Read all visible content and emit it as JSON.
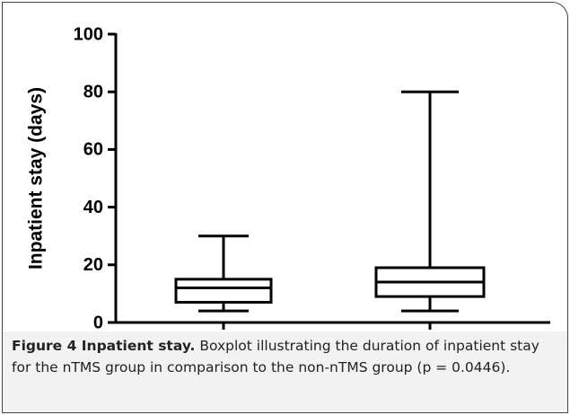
{
  "chart_data": {
    "type": "box",
    "y_label": "Inpatient stay (days)",
    "categories": [
      "nTMS",
      "non-nTMS"
    ],
    "boxes": [
      {
        "min": 4,
        "q1": 7,
        "median": 12,
        "q3": 15,
        "max": 30
      },
      {
        "min": 4,
        "q1": 9,
        "median": 14,
        "q3": 19,
        "max": 80
      }
    ],
    "color": "#000000",
    "ylim": [
      0,
      100
    ],
    "yticks": [
      0,
      20,
      40,
      60,
      80,
      100
    ]
  },
  "caption": {
    "label": "Figure 4 Inpatient stay.",
    "text": "Boxplot illustrating the duration of inpatient stay for the nTMS group in comparison to the non-nTMS group (p = 0.0446)."
  }
}
